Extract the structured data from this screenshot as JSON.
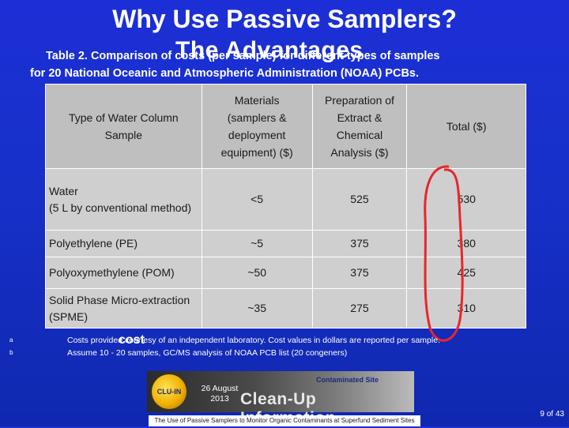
{
  "slide": {
    "title": "Why Use Passive Samplers?",
    "subtitle": "The Advantages",
    "caption_line1": "Table 2. Comparison of costs (per sample) for different types of samples",
    "caption_line2": "for 20 National Oceanic and Atmospheric Administration (NOAA) PCBs.",
    "slide_number": "9 of 43"
  },
  "table": {
    "headers": [
      "Type of Water Column Sample",
      "Materials (samplers & deployment equipment) ($)",
      "Preparation of Extract & Chemical Analysis ($)",
      "Total ($)"
    ],
    "rows": [
      [
        "Water\n(5 L by conventional method)",
        "<5",
        "525",
        "530"
      ],
      [
        "Polyethylene (PE)",
        "~5",
        "375",
        "380"
      ],
      [
        "Polyoxymethylene (POM)",
        "~50",
        "375",
        "425"
      ],
      [
        "Solid Phase Micro-extraction (SPME)",
        "~35",
        "275",
        "310"
      ]
    ]
  },
  "annotation": {
    "label": "cost",
    "color": "#e8262a"
  },
  "footnotes": {
    "marker_a": "a",
    "marker_b": "b",
    "note_a": "Costs provided courtesy of an independent laboratory.  Cost values in dollars are reported per sample.",
    "note_b": "Assume 10 - 20 samples, GC/MS analysis of NOAA PCB list  (20 congeners)"
  },
  "banner": {
    "logo_text": "CLU-IN",
    "date_line1": "26 August",
    "date_line2": "2013",
    "title": "Clean-Up Information",
    "subtitle": "Contaminated Site",
    "footer": "The Use of Passive Samplers to Monitor Organic Contaminants at Superfund Sediment Sites"
  }
}
